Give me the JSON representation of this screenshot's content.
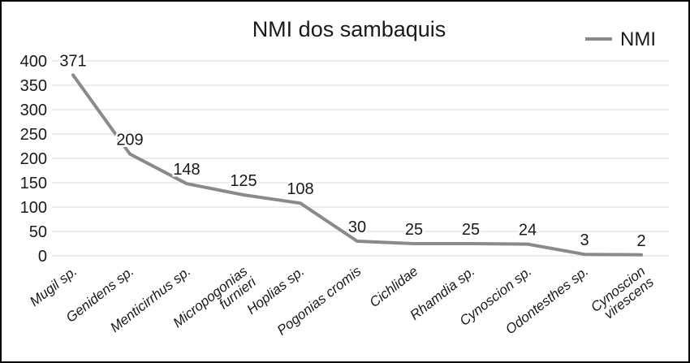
{
  "chart_data": {
    "type": "line",
    "title": "NMI dos sambaquis",
    "legend": [
      "NMI"
    ],
    "legend_position": "top-right",
    "categories": [
      "Mugil sp.",
      "Genidens sp.",
      "Menticirrhus sp.",
      "Micropogonias\nfurnieri",
      "Hoplias sp.",
      "Pogonias cromis",
      "Cichlidae",
      "Rhamdia sp.",
      "Cynoscion sp.",
      "Odontesthes sp.",
      "Cynoscion\nvirescens"
    ],
    "values": [
      371,
      209,
      148,
      125,
      108,
      30,
      25,
      25,
      24,
      3,
      2
    ],
    "data_labels": [
      371,
      209,
      148,
      125,
      108,
      30,
      25,
      25,
      24,
      3,
      2
    ],
    "ylim": [
      0,
      400
    ],
    "y_ticks": [
      0,
      50,
      100,
      150,
      200,
      250,
      300,
      350,
      400
    ],
    "grid": true,
    "colors": {
      "line": "#8a8a8a",
      "grid": "#d9d9d9",
      "text": "#1a1a1a",
      "frame": "#000000",
      "background": "#ffffff"
    }
  }
}
